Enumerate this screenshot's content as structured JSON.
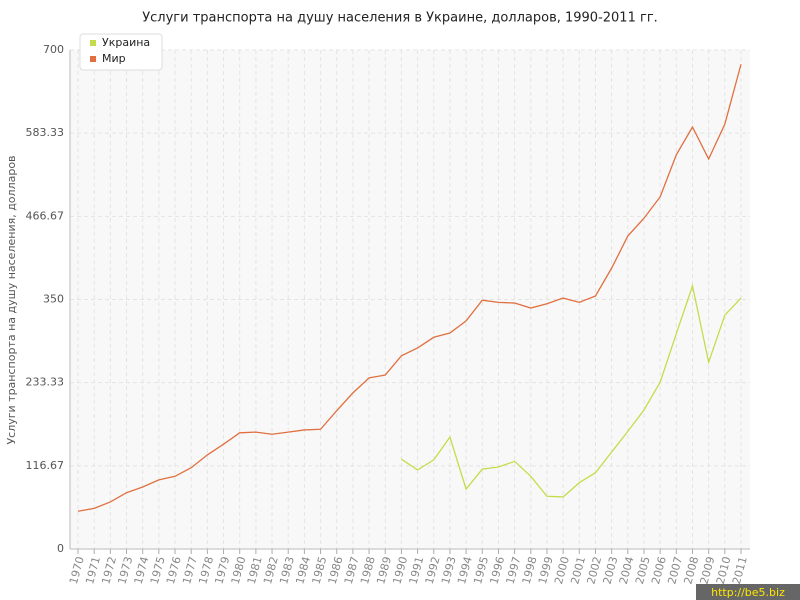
{
  "chart_data": {
    "type": "line",
    "title": "Услуги транспорта на душу населения в Украине, долларов, 1990-2011 гг.",
    "y_label": "Услуги транспорта на душу населения, долларов",
    "watermark": "http://be5.biz",
    "categories": [
      "1970",
      "1971",
      "1972",
      "1973",
      "1974",
      "1975",
      "1976",
      "1977",
      "1978",
      "1979",
      "1980",
      "1981",
      "1982",
      "1983",
      "1984",
      "1985",
      "1986",
      "1987",
      "1988",
      "1989",
      "1990",
      "1991",
      "1992",
      "1993",
      "1994",
      "1995",
      "1996",
      "1997",
      "1998",
      "1999",
      "2000",
      "2001",
      "2002",
      "2003",
      "2004",
      "2005",
      "2006",
      "2007",
      "2008",
      "2009",
      "2010",
      "2011"
    ],
    "series": [
      {
        "name": "Украина",
        "color": "#c5dc4a",
        "values": [
          null,
          null,
          null,
          null,
          null,
          null,
          null,
          null,
          null,
          null,
          null,
          null,
          null,
          null,
          null,
          null,
          null,
          null,
          null,
          null,
          126,
          111,
          125,
          157,
          84,
          112,
          115,
          123,
          102,
          74,
          73,
          93,
          107,
          136,
          165,
          195,
          234,
          302,
          369,
          262,
          328,
          352
        ]
      },
      {
        "name": "Мир",
        "color": "#e07040",
        "values": [
          53,
          57,
          66,
          79,
          87,
          97,
          102,
          114,
          132,
          147,
          163,
          164,
          161,
          164,
          167,
          168,
          194,
          219,
          240,
          244,
          271,
          282,
          297,
          303,
          320,
          349,
          346,
          345,
          338,
          344,
          352,
          346,
          355,
          394,
          439,
          464,
          494,
          553,
          592,
          547,
          596,
          680
        ]
      }
    ],
    "ylim": [
      0,
      700
    ],
    "yticks": [
      0,
      116.67,
      233.33,
      350,
      466.67,
      583.33,
      700
    ],
    "grid": true,
    "legend": "top-left"
  }
}
